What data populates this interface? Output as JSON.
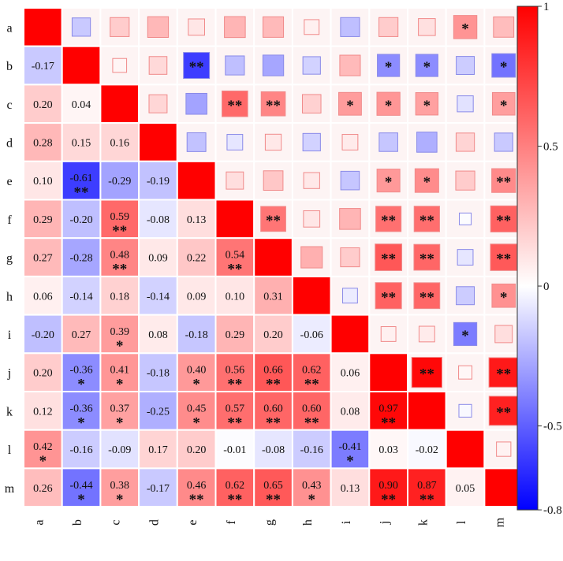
{
  "chart_data": {
    "type": "heatmap",
    "title": "",
    "variables": [
      "a",
      "b",
      "c",
      "d",
      "e",
      "f",
      "g",
      "h",
      "i",
      "j",
      "k",
      "l",
      "m"
    ],
    "value_range": [
      -0.8,
      1
    ],
    "colorbar_ticks": [
      "1",
      "0.5",
      "0",
      "-0.5",
      "-0.8"
    ],
    "colorbar_tick_values": [
      1,
      0.5,
      0,
      -0.5,
      -0.8
    ],
    "colors": {
      "positive": "#ff0000",
      "neutral": "#ffffff",
      "negative": "#0000ff"
    },
    "matrix": [
      [
        1,
        -0.17,
        0.2,
        0.28,
        0.1,
        0.29,
        0.27,
        0.06,
        -0.2,
        0.2,
        0.12,
        0.42,
        0.26
      ],
      [
        -0.17,
        1,
        0.04,
        0.15,
        -0.61,
        -0.2,
        -0.28,
        -0.14,
        0.27,
        -0.36,
        -0.36,
        -0.16,
        -0.44
      ],
      [
        0.2,
        0.04,
        1,
        0.16,
        -0.29,
        0.59,
        0.48,
        0.18,
        0.39,
        0.41,
        0.37,
        -0.09,
        0.38
      ],
      [
        0.28,
        0.15,
        0.16,
        1,
        -0.19,
        -0.08,
        0.09,
        -0.14,
        0.08,
        -0.18,
        -0.25,
        0.17,
        -0.17
      ],
      [
        0.1,
        -0.61,
        -0.29,
        -0.19,
        1,
        0.13,
        0.22,
        0.09,
        -0.18,
        0.4,
        0.45,
        0.2,
        0.46
      ],
      [
        0.29,
        -0.2,
        0.59,
        -0.08,
        0.13,
        1,
        0.54,
        0.1,
        0.29,
        0.56,
        0.57,
        -0.01,
        0.62
      ],
      [
        0.27,
        -0.28,
        0.48,
        0.09,
        0.22,
        0.54,
        1,
        0.31,
        0.2,
        0.66,
        0.6,
        -0.08,
        0.65
      ],
      [
        0.06,
        -0.14,
        0.18,
        -0.14,
        0.09,
        0.1,
        0.31,
        1,
        -0.06,
        0.62,
        0.6,
        -0.16,
        0.43
      ],
      [
        -0.2,
        0.27,
        0.39,
        0.08,
        -0.18,
        0.29,
        0.2,
        -0.06,
        1,
        0.06,
        0.08,
        -0.41,
        0.13
      ],
      [
        0.2,
        -0.36,
        0.41,
        -0.18,
        0.4,
        0.56,
        0.66,
        0.62,
        0.06,
        1,
        0.97,
        0.03,
        0.9
      ],
      [
        0.12,
        -0.36,
        0.37,
        -0.25,
        0.45,
        0.57,
        0.6,
        0.6,
        0.08,
        0.97,
        1,
        -0.02,
        0.87
      ],
      [
        0.42,
        -0.16,
        -0.09,
        0.17,
        0.2,
        -0.01,
        -0.08,
        -0.16,
        -0.41,
        0.03,
        -0.02,
        1,
        0.05
      ],
      [
        0.26,
        -0.44,
        0.38,
        -0.17,
        0.46,
        0.62,
        0.65,
        0.43,
        0.13,
        0.9,
        0.87,
        0.05,
        1
      ]
    ],
    "value_labels": [
      [
        "",
        "",
        "",
        "",
        "",
        "",
        "",
        "",
        "",
        "",
        "",
        "",
        ""
      ],
      [
        "-0.17",
        "",
        "",
        "",
        "",
        "",
        "",
        "",
        "",
        "",
        "",
        "",
        ""
      ],
      [
        "0.20",
        "0.04",
        "",
        "",
        "",
        "",
        "",
        "",
        "",
        "",
        "",
        "",
        ""
      ],
      [
        "0.28",
        "0.15",
        "0.16",
        "",
        "",
        "",
        "",
        "",
        "",
        "",
        "",
        "",
        ""
      ],
      [
        "0.10",
        "-0.61",
        "-0.29",
        "-0.19",
        "",
        "",
        "",
        "",
        "",
        "",
        "",
        "",
        ""
      ],
      [
        "0.29",
        "-0.20",
        "0.59",
        "-0.08",
        "0.13",
        "",
        "",
        "",
        "",
        "",
        "",
        "",
        ""
      ],
      [
        "0.27",
        "-0.28",
        "0.48",
        "0.09",
        "0.22",
        "0.54",
        "",
        "",
        "",
        "",
        "",
        "",
        ""
      ],
      [
        "0.06",
        "-0.14",
        "0.18",
        "-0.14",
        "0.09",
        "0.10",
        "0.31",
        "",
        "",
        "",
        "",
        "",
        ""
      ],
      [
        "-0.20",
        "0.27",
        "0.39",
        "0.08",
        "-0.18",
        "0.29",
        "0.20",
        "-0.06",
        "",
        "",
        "",
        "",
        ""
      ],
      [
        "0.20",
        "-0.36",
        "0.41",
        "-0.18",
        "0.40",
        "0.56",
        "0.66",
        "0.62",
        "0.06",
        "",
        "",
        "",
        ""
      ],
      [
        "0.12",
        "-0.36",
        "0.37",
        "-0.25",
        "0.45",
        "0.57",
        "0.60",
        "0.60",
        "0.08",
        "0.97",
        "",
        "",
        ""
      ],
      [
        "0.42",
        "-0.16",
        "-0.09",
        "0.17",
        "0.20",
        "-0.01",
        "-0.08",
        "-0.16",
        "-0.41",
        "0.03",
        "-0.02",
        "",
        ""
      ],
      [
        "0.26",
        "-0.44",
        "0.38",
        "-0.17",
        "0.46",
        "0.62",
        "0.65",
        "0.43",
        "0.13",
        "0.90",
        "0.87",
        "0.05",
        ""
      ]
    ],
    "significance": [
      [
        "",
        "",
        "",
        "",
        "",
        "",
        "",
        "",
        "",
        "",
        "",
        "*",
        ""
      ],
      [
        "",
        "",
        "",
        "",
        "**",
        "",
        "",
        "",
        "",
        "*",
        "*",
        "",
        "*"
      ],
      [
        "",
        "",
        "",
        "",
        "",
        "**",
        "**",
        "",
        "*",
        "*",
        "*",
        "",
        "*"
      ],
      [
        "",
        "",
        "",
        "",
        "",
        "",
        "",
        "",
        "",
        "",
        "",
        "",
        ""
      ],
      [
        "",
        "**",
        "",
        "",
        "",
        "",
        "",
        "",
        "",
        "*",
        "*",
        "",
        "**"
      ],
      [
        "",
        "",
        "**",
        "",
        "",
        "",
        "**",
        "",
        "",
        "**",
        "**",
        "",
        "**"
      ],
      [
        "",
        "",
        "**",
        "",
        "",
        "**",
        "",
        "",
        "",
        "**",
        "**",
        "",
        "**"
      ],
      [
        "",
        "",
        "",
        "",
        "",
        "",
        "",
        "",
        "",
        "**",
        "**",
        "",
        "*"
      ],
      [
        "",
        "",
        "*",
        "",
        "",
        "",
        "",
        "",
        "",
        "",
        "",
        "*",
        ""
      ],
      [
        "",
        "*",
        "*",
        "",
        "*",
        "**",
        "**",
        "**",
        "",
        "",
        "**",
        "",
        "**"
      ],
      [
        "",
        "*",
        "*",
        "",
        "*",
        "**",
        "**",
        "**",
        "",
        "**",
        "",
        "",
        "**"
      ],
      [
        "*",
        "",
        "",
        "",
        "",
        "",
        "",
        "",
        "*",
        "",
        "",
        "",
        ""
      ],
      [
        "",
        "*",
        "*",
        "",
        "**",
        "**",
        "**",
        "*",
        "",
        "**",
        "**",
        "",
        ""
      ]
    ],
    "lower_triangle": "color+value",
    "upper_triangle": "square",
    "legend": "right"
  }
}
